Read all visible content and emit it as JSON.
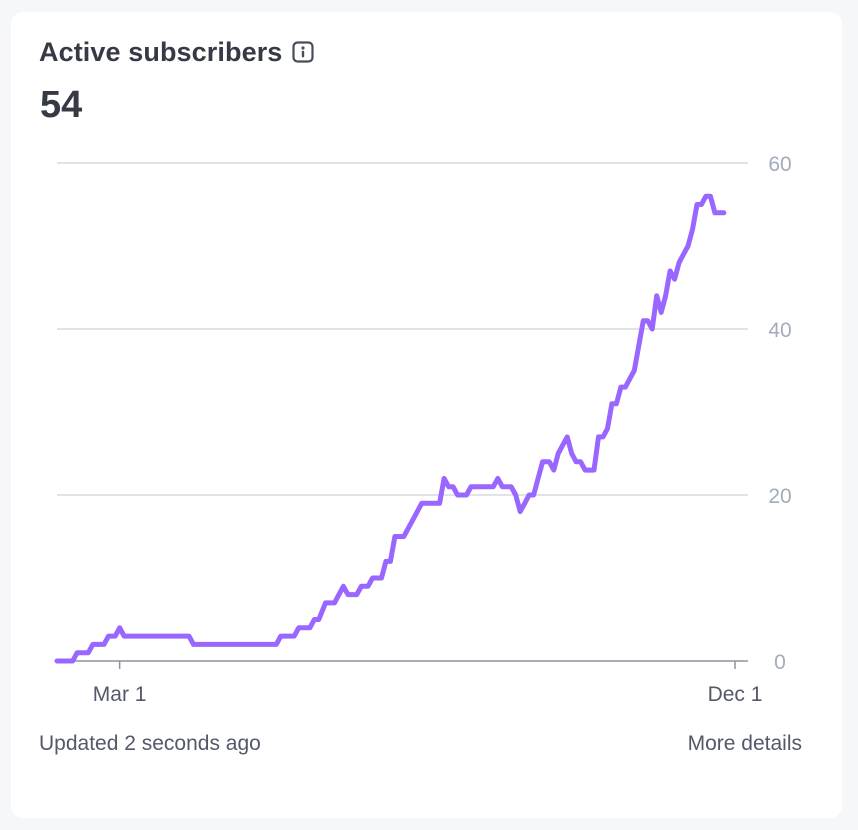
{
  "card": {
    "title": "Active subscribers",
    "value": "54",
    "updated": "Updated 2 seconds ago",
    "more_details": "More details"
  },
  "colors": {
    "line": "#9966ff",
    "grid": "#d7dae0",
    "tick_text": "#a3acba",
    "axis": "#8c93a3"
  },
  "chart_data": {
    "type": "line",
    "title": "Active subscribers",
    "xlabel": "",
    "ylabel": "",
    "ylim": [
      0,
      60
    ],
    "yticks": [
      0,
      20,
      40,
      60
    ],
    "xtick_labels": [
      {
        "label": "Mar 1",
        "x": "2023-03-01"
      },
      {
        "label": "Dec 1",
        "x": "2023-12-01"
      }
    ],
    "grid": true,
    "series": [
      {
        "points": [
          [
            "2023-02-01",
            0
          ],
          [
            "2023-02-08",
            0
          ],
          [
            "2023-02-10",
            1
          ],
          [
            "2023-02-15",
            1
          ],
          [
            "2023-02-17",
            2
          ],
          [
            "2023-02-22",
            2
          ],
          [
            "2023-02-24",
            3
          ],
          [
            "2023-02-27",
            3
          ],
          [
            "2023-03-01",
            4
          ],
          [
            "2023-03-03",
            3
          ],
          [
            "2023-03-08",
            3
          ],
          [
            "2023-04-01",
            3
          ],
          [
            "2023-04-03",
            2
          ],
          [
            "2023-04-10",
            2
          ],
          [
            "2023-05-10",
            2
          ],
          [
            "2023-05-12",
            3
          ],
          [
            "2023-05-18",
            3
          ],
          [
            "2023-05-20",
            4
          ],
          [
            "2023-05-25",
            4
          ],
          [
            "2023-05-27",
            5
          ],
          [
            "2023-05-29",
            5
          ],
          [
            "2023-06-01",
            7
          ],
          [
            "2023-06-05",
            7
          ],
          [
            "2023-06-07",
            8
          ],
          [
            "2023-06-09",
            9
          ],
          [
            "2023-06-11",
            8
          ],
          [
            "2023-06-15",
            8
          ],
          [
            "2023-06-17",
            9
          ],
          [
            "2023-06-20",
            9
          ],
          [
            "2023-06-22",
            10
          ],
          [
            "2023-06-26",
            10
          ],
          [
            "2023-06-28",
            12
          ],
          [
            "2023-06-30",
            12
          ],
          [
            "2023-07-02",
            15
          ],
          [
            "2023-07-06",
            15
          ],
          [
            "2023-07-08",
            16
          ],
          [
            "2023-07-10",
            17
          ],
          [
            "2023-07-12",
            18
          ],
          [
            "2023-07-14",
            19
          ],
          [
            "2023-07-22",
            19
          ],
          [
            "2023-07-24",
            22
          ],
          [
            "2023-07-26",
            21
          ],
          [
            "2023-07-28",
            21
          ],
          [
            "2023-07-30",
            20
          ],
          [
            "2023-08-03",
            20
          ],
          [
            "2023-08-05",
            21
          ],
          [
            "2023-08-15",
            21
          ],
          [
            "2023-08-17",
            22
          ],
          [
            "2023-08-19",
            21
          ],
          [
            "2023-08-23",
            21
          ],
          [
            "2023-08-25",
            20
          ],
          [
            "2023-08-27",
            18
          ],
          [
            "2023-08-29",
            19
          ],
          [
            "2023-08-31",
            20
          ],
          [
            "2023-09-02",
            20
          ],
          [
            "2023-09-04",
            22
          ],
          [
            "2023-09-06",
            24
          ],
          [
            "2023-09-09",
            24
          ],
          [
            "2023-09-11",
            23
          ],
          [
            "2023-09-13",
            25
          ],
          [
            "2023-09-15",
            26
          ],
          [
            "2023-09-17",
            27
          ],
          [
            "2023-09-19",
            25
          ],
          [
            "2023-09-21",
            24
          ],
          [
            "2023-09-23",
            24
          ],
          [
            "2023-09-25",
            23
          ],
          [
            "2023-09-29",
            23
          ],
          [
            "2023-10-01",
            27
          ],
          [
            "2023-10-03",
            27
          ],
          [
            "2023-10-05",
            28
          ],
          [
            "2023-10-07",
            31
          ],
          [
            "2023-10-09",
            31
          ],
          [
            "2023-10-11",
            33
          ],
          [
            "2023-10-13",
            33
          ],
          [
            "2023-10-15",
            34
          ],
          [
            "2023-10-17",
            35
          ],
          [
            "2023-10-19",
            38
          ],
          [
            "2023-10-21",
            41
          ],
          [
            "2023-10-23",
            41
          ],
          [
            "2023-10-25",
            40
          ],
          [
            "2023-10-27",
            44
          ],
          [
            "2023-10-29",
            42
          ],
          [
            "2023-10-31",
            44
          ],
          [
            "2023-11-02",
            47
          ],
          [
            "2023-11-04",
            46
          ],
          [
            "2023-11-06",
            48
          ],
          [
            "2023-11-08",
            49
          ],
          [
            "2023-11-10",
            50
          ],
          [
            "2023-11-12",
            52
          ],
          [
            "2023-11-14",
            55
          ],
          [
            "2023-11-16",
            55
          ],
          [
            "2023-11-18",
            56
          ],
          [
            "2023-11-20",
            56
          ],
          [
            "2023-11-22",
            54
          ],
          [
            "2023-11-26",
            54
          ]
        ]
      }
    ]
  }
}
